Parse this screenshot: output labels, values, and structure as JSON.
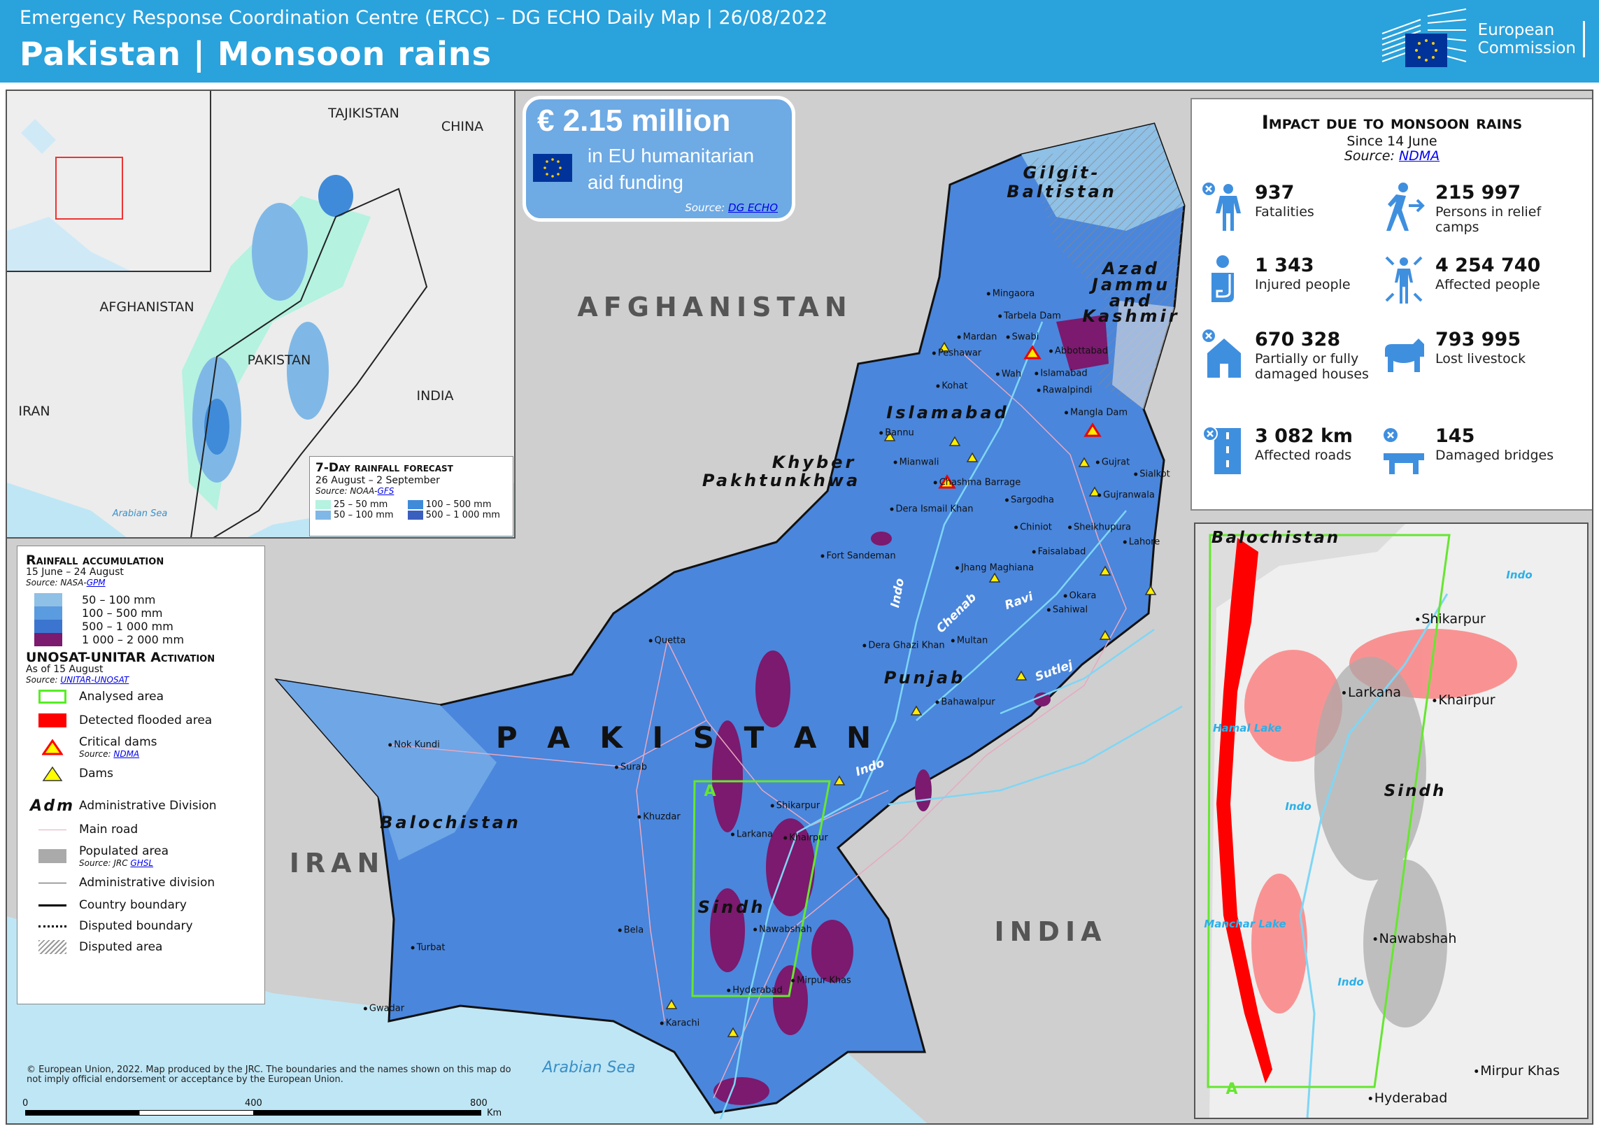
{
  "header": {
    "subtitle": "Emergency Response Coordination Centre (ERCC) – DG ECHO Daily Map | 26/08/2022",
    "title": "Pakistan | Monsoon rains",
    "logo_text": [
      "European",
      "Commission"
    ],
    "brand_color": "#2aa2dc"
  },
  "funding": {
    "amount": "€ 2.15 million",
    "line1": "in EU humanitarian",
    "line2": "aid funding",
    "source_label": "Source:",
    "source_link": "DG ECHO"
  },
  "impact": {
    "title": "Impact due to monsoon rains",
    "since": "Since 14 June",
    "source_label": "Source:",
    "source_link": "NDMA",
    "items": [
      {
        "icon": "fatality-person-icon",
        "value": "937",
        "label": "Fatalities"
      },
      {
        "icon": "person-walking-arrow-icon",
        "value": "215 997",
        "label": "Persons in relief camps"
      },
      {
        "icon": "injured-person-icon",
        "value": "1 343",
        "label": "Injured people"
      },
      {
        "icon": "affected-person-icon",
        "value": "4 254 740",
        "label": "Affected people"
      },
      {
        "icon": "damaged-house-icon",
        "value": "670 328",
        "label": "Partially or fully damaged houses"
      },
      {
        "icon": "cow-icon",
        "value": "793 995",
        "label": "Lost livestock"
      },
      {
        "icon": "damaged-road-icon",
        "value": "3 082 km",
        "label": "Affected roads"
      },
      {
        "icon": "damaged-bridge-icon",
        "value": "145",
        "label": "Damaged bridges"
      }
    ]
  },
  "forecast": {
    "title": "7-Day rainfall forecast",
    "dates": "26 August – 2 September",
    "source_label": "Source: NOAA-",
    "source_link": "GFS",
    "classes": [
      {
        "label": "25 – 50 mm",
        "color": "#b5f2e0"
      },
      {
        "label": "50 – 100 mm",
        "color": "#7fb8e6"
      },
      {
        "label": "100 – 500 mm",
        "color": "#3f8bd9"
      },
      {
        "label": "500 – 1 000 mm",
        "color": "#3b5fbf"
      }
    ]
  },
  "inset_labels": [
    "TAJIKISTAN",
    "CHINA",
    "AFGHANISTAN",
    "PAKISTAN",
    "INDIA",
    "IRAN",
    "Arabian Sea"
  ],
  "legend": {
    "rain_title": "Rainfall accumulation",
    "rain_dates": "15 June – 24 August",
    "rain_source": "Source: NASA-",
    "rain_link": "GPM",
    "rain_classes": [
      {
        "label": "50 – 100 mm",
        "color": "#8fc0e6"
      },
      {
        "label": "100 – 500 mm",
        "color": "#5b9be0"
      },
      {
        "label": "500 – 1 000 mm",
        "color": "#3b75cf"
      },
      {
        "label": "1 000 – 2 000 mm",
        "color": "#7b1a6e"
      }
    ],
    "unosat_title": "UNOSAT-UNITAR Activation",
    "unosat_date": "As of 15 August",
    "unosat_source": "Source:",
    "unosat_link": "UNITAR-UNOSAT",
    "analysed": "Analysed area",
    "flooded": "Detected flooded area",
    "critical_dams": "Critical dams",
    "dams_source": "Source:",
    "dams_link": "NDMA",
    "dams": "Dams",
    "adm_symbol": "Adm",
    "adm": "Administrative Division",
    "road": "Main road",
    "populated": "Populated area",
    "pop_source": "Source: JRC",
    "pop_link": "GHSL",
    "adm_line": "Administrative division",
    "country_boundary": "Country boundary",
    "disputed_boundary": "Disputed boundary",
    "disputed_area": "Disputed area"
  },
  "map": {
    "countries": [
      "AFGHANISTAN",
      "IRAN",
      "INDIA",
      "P A K I S T A N"
    ],
    "sea": "Arabian Sea",
    "provinces": [
      "Balochistan",
      "Sindh",
      "Punjab",
      "Khyber",
      "Pakhtunkhwa",
      "Islamabad",
      "Gilgit-",
      "Baltistan",
      "Azad",
      "Jammu",
      "and",
      "Kashmir"
    ],
    "rivers": [
      "Indo",
      "Chenab",
      "Ravi",
      "Sutlej",
      "Indo"
    ],
    "cities": [
      "Peshawar",
      "Mingaora",
      "Mardan",
      "Swabi",
      "Tarbela Dam",
      "Abbottabad",
      "Wah",
      "Islamabad",
      "Rawalpindi",
      "Kohat",
      "Mangla Dam",
      "Bannu",
      "Mianwali",
      "Chashma Barrage",
      "Gujrat",
      "Sialkot",
      "Gujranwala",
      "Dera Ismail Khan",
      "Sargodha",
      "Chiniot",
      "Sheikhupura",
      "Lahore",
      "Faisalabad",
      "Jhang Maghiana",
      "Fort Sandeman",
      "Okara",
      "Sahiwal",
      "Quetta",
      "Dera Ghazi Khan",
      "Multan",
      "Bahawalpur",
      "Nok Kundi",
      "Surab",
      "Khuzdar",
      "Shikarpur",
      "Larkana",
      "Khairpur",
      "Nawabshah",
      "Bela",
      "Turbat",
      "Hyderabad",
      "Mirpur Khas",
      "Karachi",
      "Gwadar"
    ],
    "analysed_area_label": "A"
  },
  "sindh_inset": {
    "labels": [
      "Balochistan",
      "Shikarpur",
      "Larkana",
      "Khairpur",
      "Hamal Lake",
      "Sindh",
      "Indo",
      "Indo",
      "Manchar Lake",
      "Nawabshah",
      "Indo",
      "Mirpur Khas",
      "Hyderabad",
      "A"
    ]
  },
  "footer": {
    "copyright": "© European Union, 2022. Map produced by the JRC. The boundaries and the names shown on this map do not imply official endorsement or acceptance by the European Union.",
    "scale": [
      "0",
      "400",
      "800"
    ],
    "unit": "Km"
  }
}
